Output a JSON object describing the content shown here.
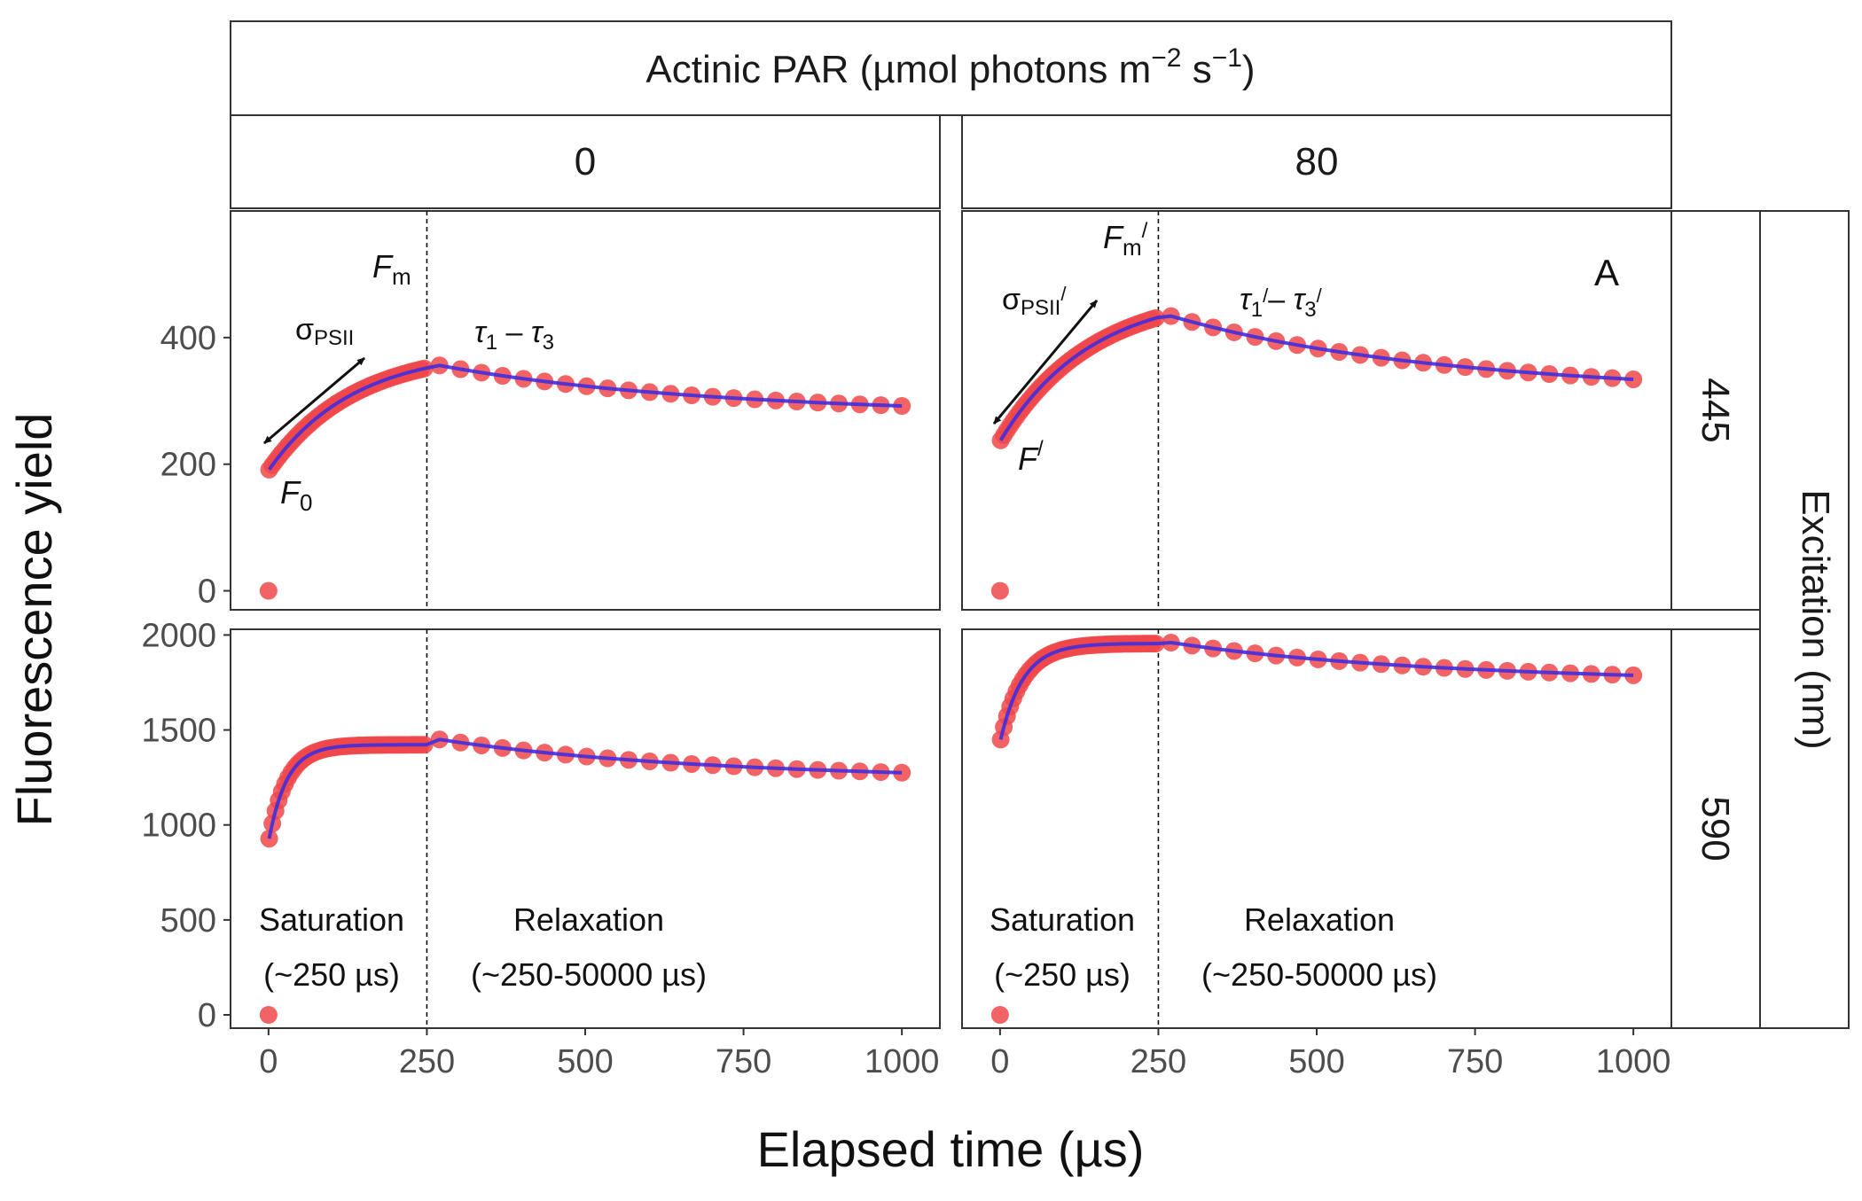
{
  "figure": {
    "top_strip": "Actinic PAR (µmol photons m⁻² s⁻¹)",
    "top_strip_main": "Actinic PAR (µmol photons m",
    "top_strip_exp1": "−2",
    "top_strip_mid": " s",
    "top_strip_exp2": "−1",
    "top_strip_close": ")",
    "right_strip": "Excitation (nm)",
    "xlabel": "Elapsed time (µs)",
    "ylabel": "Fluorescence yield",
    "panel_letter": "A"
  },
  "colors": {
    "points": "#f0484a",
    "fit_line": "#3f2ce0",
    "frame": "#333333",
    "strip_bg": "#ffffff"
  },
  "chart_data": {
    "type": "scatter",
    "facet_columns": [
      "0",
      "80"
    ],
    "facet_rows": [
      "445",
      "590"
    ],
    "x_ticks": [
      0,
      250,
      500,
      750,
      1000
    ],
    "xlim": [
      -60,
      1060
    ],
    "row_scales": [
      {
        "row": "445",
        "ylim": [
          -30,
          600
        ],
        "y_ticks": [
          0,
          200,
          400
        ]
      },
      {
        "row": "590",
        "ylim": [
          -70,
          2030
        ],
        "y_ticks": [
          0,
          500,
          1000,
          1500,
          2000
        ]
      }
    ],
    "saturation_end": 250,
    "panels": [
      {
        "column": "0",
        "row": "445",
        "saturation": {
          "y0": 190,
          "y_end": 352,
          "k": 0.0075
        },
        "relaxation": {
          "x": [
            270,
            1000
          ],
          "y_start": 356,
          "y_end": 292
        },
        "zero_point": [
          0,
          0
        ],
        "annotations": {
          "fm": "F",
          "fm_sub": "m",
          "sigma": "σ",
          "sigma_sub": "PSII",
          "tau": "τ",
          "tau_sub1": "1",
          "tau_dash": " – ",
          "tau_sub3": "3",
          "f0": "F",
          "f0_sub": "0"
        }
      },
      {
        "column": "80",
        "row": "445",
        "saturation": {
          "y0": 236,
          "y_end": 432,
          "k": 0.007
        },
        "relaxation": {
          "x": [
            270,
            1000
          ],
          "y_start": 434,
          "y_end": 334
        },
        "zero_point": [
          0,
          0
        ],
        "annotations": {
          "fm": "F",
          "fm_sub": "m",
          "prime": "/",
          "sigma": "σ",
          "sigma_sub": "PSII",
          "tau": "τ",
          "tau_sub1": "1",
          "tau_dash": "– ",
          "tau_sub3": "3",
          "f": "F"
        }
      },
      {
        "column": "0",
        "row": "590",
        "saturation": {
          "y0": 910,
          "y_end": 1422,
          "k": 0.035
        },
        "relaxation": {
          "x": [
            270,
            1000
          ],
          "y_start": 1450,
          "y_end": 1275
        },
        "zero_point": [
          0,
          0
        ],
        "labels": {
          "saturation": "Saturation",
          "saturation_range": "(~250 µs)",
          "relaxation": "Relaxation",
          "relaxation_range": "(~250-50000 µs)"
        }
      },
      {
        "column": "80",
        "row": "590",
        "saturation": {
          "y0": 1435,
          "y_end": 1955,
          "k": 0.028
        },
        "relaxation": {
          "x": [
            270,
            1000
          ],
          "y_start": 1960,
          "y_end": 1788
        },
        "zero_point": [
          0,
          0
        ],
        "labels": {
          "saturation": "Saturation",
          "saturation_range": "(~250 µs)",
          "relaxation": "Relaxation",
          "relaxation_range": "(~250-50000 µs)"
        }
      }
    ]
  }
}
